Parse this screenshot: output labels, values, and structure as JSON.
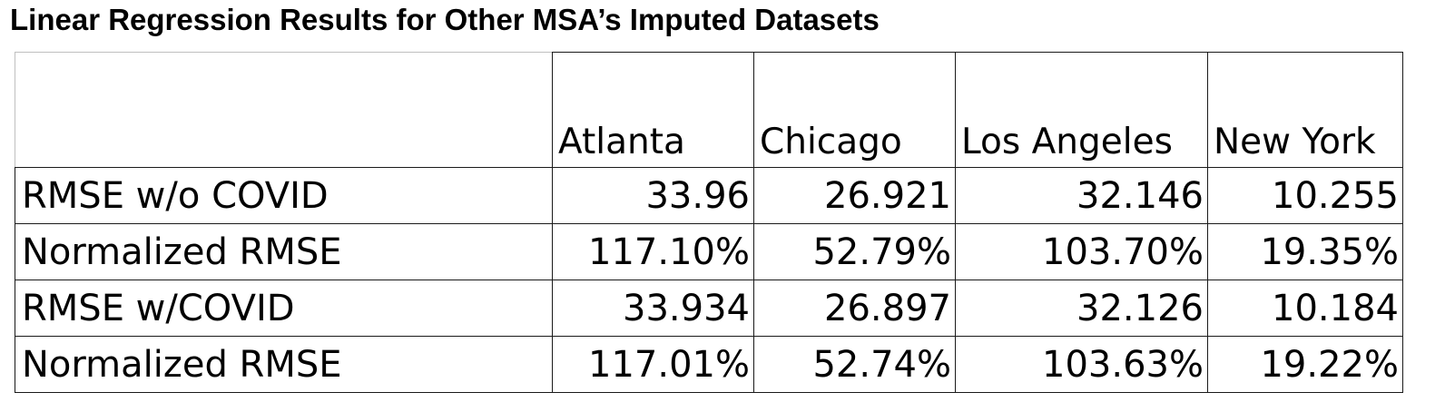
{
  "title": "Linear Regression Results for Other MSA’s Imputed Datasets",
  "chart_data": {
    "type": "table",
    "title": "Linear Regression Results for Other MSA’s Imputed Datasets",
    "columns": [
      "Atlanta",
      "Chicago",
      "Los Angeles",
      "New York"
    ],
    "rows": [
      {
        "label": "RMSE w/o COVID",
        "values": [
          "33.96",
          "26.921",
          "32.146",
          "10.255"
        ]
      },
      {
        "label": "Normalized RMSE",
        "values": [
          "117.10%",
          "52.79%",
          "103.70%",
          "19.35%"
        ]
      },
      {
        "label": "RMSE w/COVID",
        "values": [
          "33.934",
          "26.897",
          "32.126",
          "10.184"
        ]
      },
      {
        "label": "Normalized RMSE",
        "values": [
          "117.01%",
          "52.74%",
          "103.63%",
          "19.22%"
        ]
      }
    ]
  }
}
